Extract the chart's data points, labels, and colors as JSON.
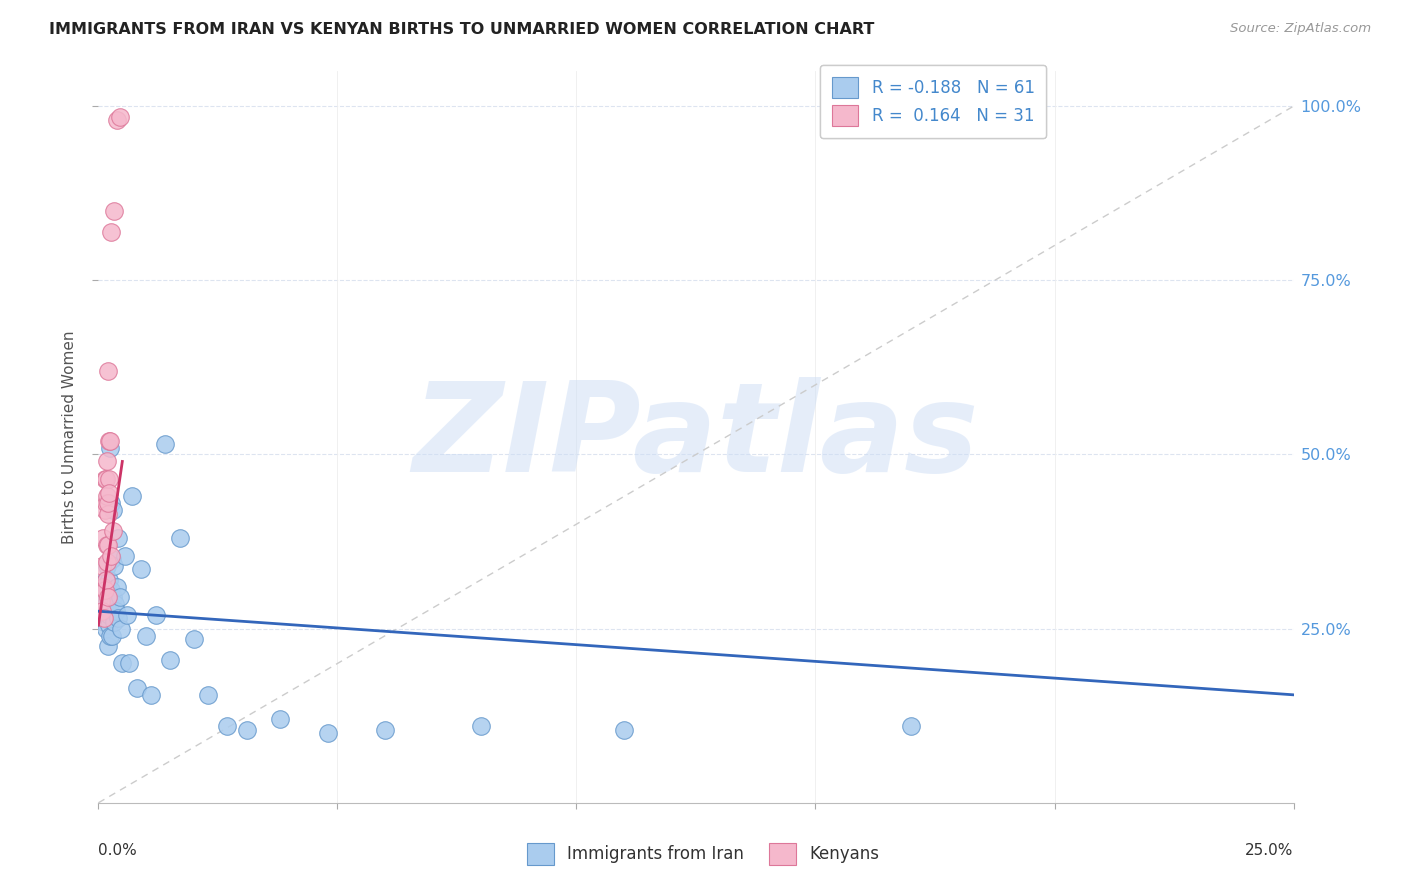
{
  "title": "IMMIGRANTS FROM IRAN VS KENYAN BIRTHS TO UNMARRIED WOMEN CORRELATION CHART",
  "source": "Source: ZipAtlas.com",
  "ylabel": "Births to Unmarried Women",
  "blue_color": "#aaccee",
  "pink_color": "#f5b8cc",
  "blue_edge_color": "#6699cc",
  "pink_edge_color": "#dd7799",
  "blue_line_color": "#3366bb",
  "pink_line_color": "#cc3366",
  "ref_line_color": "#cccccc",
  "watermark_color": "#d0dff0",
  "legend_texts": [
    "R = -0.188   N = 61",
    "R =  0.164   N = 31"
  ],
  "watermark": "ZIPatlas",
  "xlim": [
    0.0,
    0.25
  ],
  "ylim": [
    0.0,
    1.05
  ],
  "blue_scatter_x": [
    0.0005,
    0.0008,
    0.001,
    0.001,
    0.0012,
    0.0013,
    0.0014,
    0.0015,
    0.0016,
    0.0016,
    0.0017,
    0.0018,
    0.0018,
    0.0019,
    0.002,
    0.002,
    0.0021,
    0.0022,
    0.0022,
    0.0023,
    0.0024,
    0.0025,
    0.0025,
    0.0026,
    0.0027,
    0.0028,
    0.0028,
    0.003,
    0.003,
    0.0032,
    0.0033,
    0.0035,
    0.0036,
    0.0038,
    0.004,
    0.0042,
    0.0045,
    0.0048,
    0.005,
    0.0055,
    0.006,
    0.0065,
    0.007,
    0.008,
    0.009,
    0.01,
    0.011,
    0.012,
    0.014,
    0.015,
    0.017,
    0.02,
    0.023,
    0.027,
    0.031,
    0.038,
    0.048,
    0.06,
    0.08,
    0.11,
    0.17
  ],
  "blue_scatter_y": [
    0.28,
    0.3,
    0.27,
    0.315,
    0.26,
    0.29,
    0.265,
    0.285,
    0.32,
    0.25,
    0.295,
    0.275,
    0.34,
    0.265,
    0.305,
    0.225,
    0.275,
    0.255,
    0.32,
    0.27,
    0.24,
    0.285,
    0.51,
    0.43,
    0.305,
    0.24,
    0.35,
    0.295,
    0.42,
    0.34,
    0.26,
    0.285,
    0.275,
    0.31,
    0.265,
    0.38,
    0.295,
    0.25,
    0.2,
    0.355,
    0.27,
    0.2,
    0.44,
    0.165,
    0.335,
    0.24,
    0.155,
    0.27,
    0.515,
    0.205,
    0.38,
    0.235,
    0.155,
    0.11,
    0.105,
    0.12,
    0.1,
    0.105,
    0.11,
    0.105,
    0.11
  ],
  "pink_scatter_x": [
    0.0005,
    0.0007,
    0.0008,
    0.001,
    0.001,
    0.0012,
    0.0013,
    0.0013,
    0.0014,
    0.0015,
    0.0015,
    0.0016,
    0.0017,
    0.0017,
    0.0018,
    0.0018,
    0.0019,
    0.0019,
    0.002,
    0.002,
    0.0021,
    0.0022,
    0.0022,
    0.0023,
    0.0025,
    0.0026,
    0.0027,
    0.003,
    0.0033,
    0.0038,
    0.0045
  ],
  "pink_scatter_y": [
    0.29,
    0.275,
    0.34,
    0.31,
    0.38,
    0.265,
    0.42,
    0.465,
    0.305,
    0.43,
    0.465,
    0.32,
    0.44,
    0.37,
    0.345,
    0.49,
    0.415,
    0.295,
    0.43,
    0.37,
    0.62,
    0.465,
    0.52,
    0.445,
    0.52,
    0.82,
    0.355,
    0.39,
    0.85,
    0.98,
    0.985
  ],
  "blue_trend": [
    0.0,
    0.25,
    0.275,
    0.155
  ],
  "pink_trend": [
    0.0,
    0.005,
    0.255,
    0.49
  ]
}
